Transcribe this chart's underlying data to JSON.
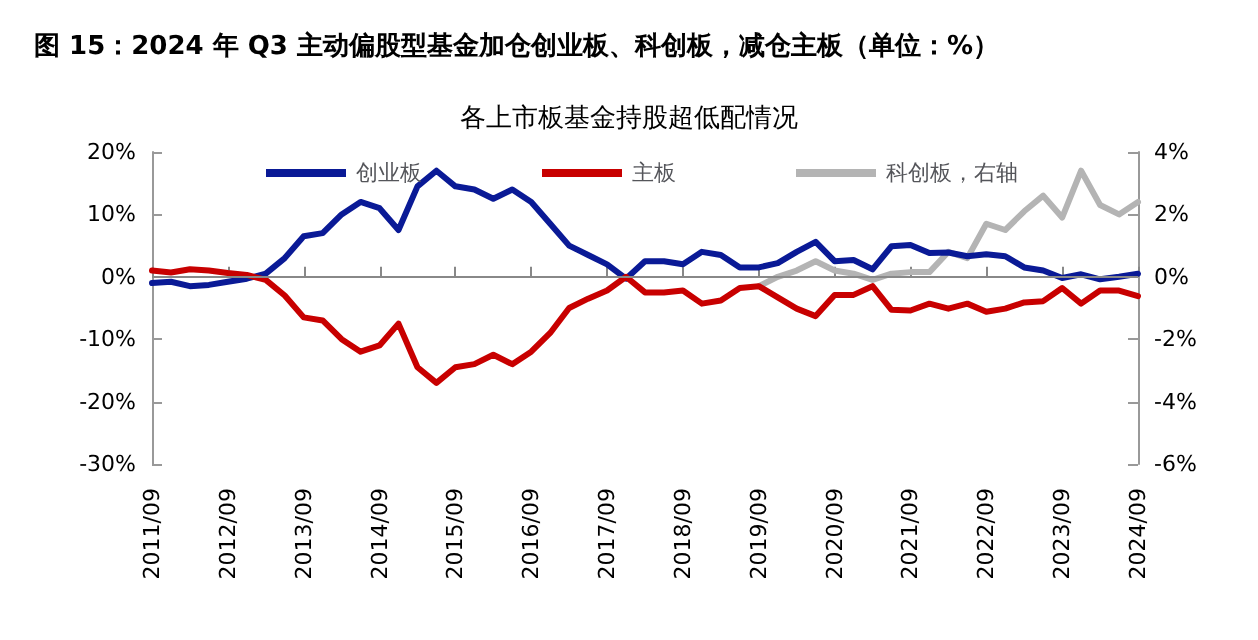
{
  "chart_data": {
    "type": "line",
    "title": "图 15：2024 年 Q3 主动偏股型基金加仓创业板、科创板，减仓主板（单位：%）",
    "subtitle": "各上市板基金持股超低配情况",
    "categories": [
      "2011/09",
      null,
      null,
      null,
      "2012/09",
      null,
      null,
      null,
      "2013/09",
      null,
      null,
      null,
      "2014/09",
      null,
      null,
      null,
      "2015/09",
      null,
      null,
      null,
      "2016/09",
      null,
      null,
      null,
      "2017/09",
      null,
      null,
      null,
      "2018/09",
      null,
      null,
      null,
      "2019/09",
      null,
      null,
      null,
      "2020/09",
      null,
      null,
      null,
      "2021/09",
      null,
      null,
      null,
      "2022/09",
      null,
      null,
      null,
      "2023/09",
      null,
      null,
      null,
      "2024/09"
    ],
    "series": [
      {
        "name": "创业板",
        "color": "#0a1a96",
        "values": [
          -1,
          -0.8,
          -1.5,
          -1.3,
          -0.8,
          -0.3,
          0.5,
          3,
          6.5,
          7,
          10,
          12,
          11,
          7.5,
          14.5,
          17,
          14.5,
          14,
          12.5,
          14,
          12,
          8.5,
          5,
          3.5,
          2,
          -0.3,
          2.5,
          2.5,
          2,
          4,
          3.5,
          1.5,
          1.5,
          2.2,
          4,
          5.6,
          2.5,
          2.7,
          1.2,
          4.9,
          5.1,
          3.8,
          3.9,
          3.3,
          3.6,
          3.3,
          1.5,
          1,
          -0.2,
          0.4,
          -0.4,
          0,
          0.5
        ]
      },
      {
        "name": "主板",
        "color": "#c80000",
        "values": [
          1,
          0.7,
          1.2,
          1,
          0.6,
          0.3,
          -0.5,
          -3,
          -6.5,
          -7,
          -10,
          -12,
          -11,
          -7.5,
          -14.5,
          -17,
          -14.5,
          -14,
          -12.5,
          -14,
          -12,
          -9,
          -5,
          -3.5,
          -2.2,
          0,
          -2.5,
          -2.5,
          -2.2,
          -4.3,
          -3.8,
          -1.8,
          -1.5,
          -3.3,
          -5.1,
          -6.3,
          -2.9,
          -2.9,
          -1.5,
          -5.3,
          -5.4,
          -4.3,
          -5.1,
          -4.3,
          -5.6,
          -5.1,
          -4.1,
          -3.9,
          -1.8,
          -4.3,
          -2.2,
          -2.2,
          -3.1
        ]
      },
      {
        "name": "科创板，右轴",
        "color": "#b4b4b4",
        "axis": "y2",
        "values": [
          null,
          null,
          null,
          null,
          null,
          null,
          null,
          null,
          null,
          null,
          null,
          null,
          null,
          null,
          null,
          null,
          null,
          null,
          null,
          null,
          null,
          null,
          null,
          null,
          null,
          null,
          null,
          null,
          null,
          null,
          null,
          null,
          -0.3,
          0,
          0.2,
          0.5,
          0.2,
          0.1,
          -0.1,
          0.1,
          0.15,
          0.15,
          0.8,
          0.6,
          1.7,
          1.5,
          2.1,
          2.6,
          1.9,
          3.4,
          2.3,
          2,
          2.4
        ]
      }
    ],
    "ylim": [
      -30,
      20
    ],
    "yticks": [
      {
        "value": -30,
        "label": "-30%"
      },
      {
        "value": -20,
        "label": "-20%"
      },
      {
        "value": -10,
        "label": "-10%"
      },
      {
        "value": 0,
        "label": "0%"
      },
      {
        "value": 10,
        "label": "10%"
      },
      {
        "value": 20,
        "label": "20%"
      }
    ],
    "y2lim": [
      -6,
      4
    ],
    "y2ticks": [
      {
        "value": -6,
        "label": "-6%"
      },
      {
        "value": -4,
        "label": "-4%"
      },
      {
        "value": -2,
        "label": "-2%"
      },
      {
        "value": 0,
        "label": "0%"
      },
      {
        "value": 2,
        "label": "2%"
      },
      {
        "value": 4,
        "label": "4%"
      }
    ],
    "ref_lines": [
      {
        "axis": "y",
        "value": 0,
        "color": "#888888"
      }
    ],
    "grid": false,
    "legend": "top",
    "marker": "none",
    "line_style": "solid"
  }
}
